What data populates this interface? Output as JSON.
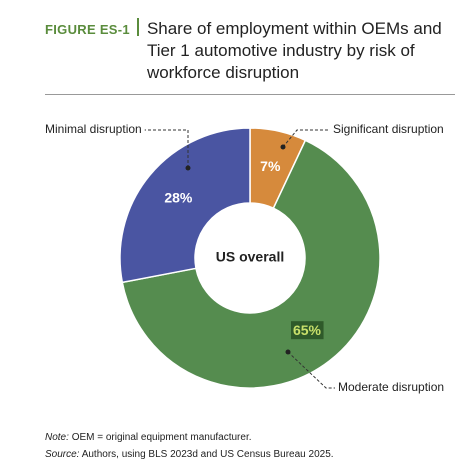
{
  "chart_data": {
    "type": "donut",
    "figure_label": "FIGURE ES-1",
    "title": "Share of employment within OEMs and Tier 1 automotive industry by risk of workforce disruption",
    "center_label": "US overall",
    "categories": [
      "Significant disruption",
      "Moderate disruption",
      "Minimal disruption"
    ],
    "values": [
      7,
      65,
      28
    ],
    "value_labels": [
      "7%",
      "65%",
      "28%"
    ],
    "colors": [
      "#d68a3c",
      "#558c4f",
      "#4a55a2"
    ],
    "note_label": "Note:",
    "note": "OEM = original equipment manufacturer.",
    "source_label": "Source:",
    "source": "Authors, using BLS 2023d and US Census Bureau 2025."
  }
}
